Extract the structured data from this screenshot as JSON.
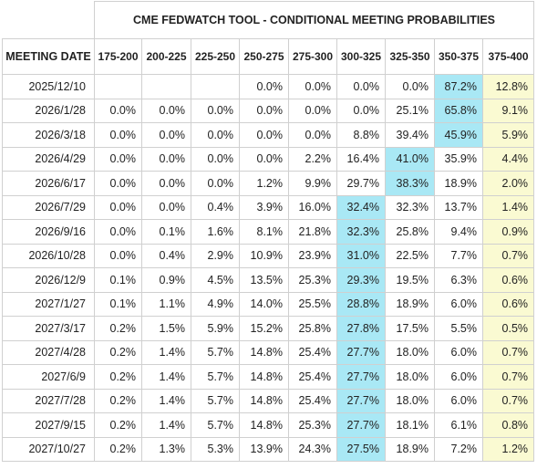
{
  "title": "CME FEDWATCH TOOL - CONDITIONAL MEETING PROBABILITIES",
  "header": {
    "meeting_date": "MEETING DATE",
    "ranges": [
      "175-200",
      "200-225",
      "225-250",
      "250-275",
      "275-300",
      "300-325",
      "325-350",
      "350-375",
      "375-400"
    ]
  },
  "colors": {
    "highest_probability": "#a9e8f5",
    "current_range_column": "#fafad2"
  },
  "current_range_index": 8,
  "rows": [
    {
      "date": "2025/12/10",
      "values": [
        "",
        "",
        "",
        "0.0%",
        "0.0%",
        "0.0%",
        "0.0%",
        "87.2%",
        "12.8%"
      ],
      "max": 7
    },
    {
      "date": "2026/1/28",
      "values": [
        "0.0%",
        "0.0%",
        "0.0%",
        "0.0%",
        "0.0%",
        "0.0%",
        "25.1%",
        "65.8%",
        "9.1%"
      ],
      "max": 7
    },
    {
      "date": "2026/3/18",
      "values": [
        "0.0%",
        "0.0%",
        "0.0%",
        "0.0%",
        "0.0%",
        "8.8%",
        "39.4%",
        "45.9%",
        "5.9%"
      ],
      "max": 7
    },
    {
      "date": "2026/4/29",
      "values": [
        "0.0%",
        "0.0%",
        "0.0%",
        "0.0%",
        "2.2%",
        "16.4%",
        "41.0%",
        "35.9%",
        "4.4%"
      ],
      "max": 6
    },
    {
      "date": "2026/6/17",
      "values": [
        "0.0%",
        "0.0%",
        "0.0%",
        "1.2%",
        "9.9%",
        "29.7%",
        "38.3%",
        "18.9%",
        "2.0%"
      ],
      "max": 6
    },
    {
      "date": "2026/7/29",
      "values": [
        "0.0%",
        "0.0%",
        "0.4%",
        "3.9%",
        "16.0%",
        "32.4%",
        "32.3%",
        "13.7%",
        "1.4%"
      ],
      "max": 5
    },
    {
      "date": "2026/9/16",
      "values": [
        "0.0%",
        "0.1%",
        "1.6%",
        "8.1%",
        "21.8%",
        "32.3%",
        "25.8%",
        "9.4%",
        "0.9%"
      ],
      "max": 5
    },
    {
      "date": "2026/10/28",
      "values": [
        "0.0%",
        "0.4%",
        "2.9%",
        "10.9%",
        "23.9%",
        "31.0%",
        "22.5%",
        "7.7%",
        "0.7%"
      ],
      "max": 5
    },
    {
      "date": "2026/12/9",
      "values": [
        "0.1%",
        "0.9%",
        "4.5%",
        "13.5%",
        "25.3%",
        "29.3%",
        "19.5%",
        "6.3%",
        "0.6%"
      ],
      "max": 5
    },
    {
      "date": "2027/1/27",
      "values": [
        "0.1%",
        "1.1%",
        "4.9%",
        "14.0%",
        "25.5%",
        "28.8%",
        "18.9%",
        "6.0%",
        "0.6%"
      ],
      "max": 5
    },
    {
      "date": "2027/3/17",
      "values": [
        "0.2%",
        "1.5%",
        "5.9%",
        "15.2%",
        "25.8%",
        "27.8%",
        "17.5%",
        "5.5%",
        "0.5%"
      ],
      "max": 5
    },
    {
      "date": "2027/4/28",
      "values": [
        "0.2%",
        "1.4%",
        "5.7%",
        "14.8%",
        "25.4%",
        "27.7%",
        "18.0%",
        "6.0%",
        "0.7%"
      ],
      "max": 5
    },
    {
      "date": "2027/6/9",
      "values": [
        "0.2%",
        "1.4%",
        "5.7%",
        "14.8%",
        "25.4%",
        "27.7%",
        "18.0%",
        "6.0%",
        "0.7%"
      ],
      "max": 5
    },
    {
      "date": "2027/7/28",
      "values": [
        "0.2%",
        "1.4%",
        "5.7%",
        "14.8%",
        "25.4%",
        "27.7%",
        "18.0%",
        "6.0%",
        "0.7%"
      ],
      "max": 5
    },
    {
      "date": "2027/9/15",
      "values": [
        "0.2%",
        "1.4%",
        "5.7%",
        "14.8%",
        "25.3%",
        "27.7%",
        "18.1%",
        "6.1%",
        "0.8%"
      ],
      "max": 5
    },
    {
      "date": "2027/10/27",
      "values": [
        "0.2%",
        "1.3%",
        "5.3%",
        "13.9%",
        "24.3%",
        "27.5%",
        "18.9%",
        "7.2%",
        "1.2%"
      ],
      "max": 5
    }
  ]
}
